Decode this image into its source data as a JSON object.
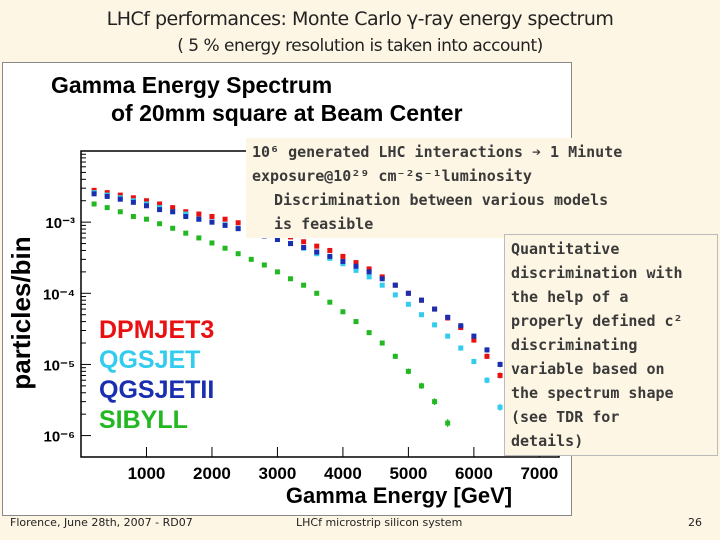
{
  "slide": {
    "title_line1": "LHCf performances: Monte Carlo γ-ray energy spectrum",
    "title_line2": "( 5 % energy resolution is taken into account)",
    "footer_left": "Florence, June 28th, 2007 - RD07",
    "footer_center": "LHCf microstrip silicon system",
    "page_number": "26"
  },
  "callouts": {
    "box1_line1": "10⁶ generated LHC interactions ➔ 1 Minute",
    "box1_line2": "exposure@10²⁹ cm⁻²s⁻¹luminosity",
    "box1_line3": "Discrimination between various models",
    "box1_line4": "is feasible",
    "box2_lines": [
      "Quantitative",
      "discrimination with",
      "the help of a",
      "properly defined c²",
      "discriminating",
      "variable based on",
      "the spectrum shape",
      "(see TDR for",
      "details)"
    ]
  },
  "chart_data": {
    "type": "scatter",
    "title": "Gamma Energy Spectrum of 20mm square at Beam Center",
    "title_lines": [
      "Gamma Energy Spectrum",
      "of 20mm square at Beam Center"
    ],
    "xlabel": "Gamma Energy [GeV]",
    "ylabel": "particles/bin",
    "xlim": [
      0,
      7300
    ],
    "ylim": [
      5e-07,
      0.01
    ],
    "y_scale": "log",
    "x_ticks": [
      1000,
      2000,
      3000,
      4000,
      5000,
      6000,
      7000
    ],
    "y_ticks": [
      1e-06,
      1e-05,
      0.0001,
      0.001
    ],
    "y_tick_labels": [
      "10⁻⁶",
      "10⁻⁵",
      "10⁻⁴",
      "10⁻³"
    ],
    "legend_position": "bottom-left",
    "series": [
      {
        "name": "DPMJET3",
        "color": "#e81010",
        "x": [
          200,
          400,
          600,
          800,
          1000,
          1200,
          1400,
          1600,
          1800,
          2000,
          2200,
          2400,
          2600,
          2800,
          3000,
          3200,
          3400,
          3600,
          3800,
          4000,
          4200,
          4400,
          4600,
          4800,
          5000,
          5200,
          5400,
          5600,
          5800,
          6000,
          6200,
          6400,
          6600
        ],
        "y": [
          0.0028,
          0.0026,
          0.0024,
          0.0022,
          0.002,
          0.0018,
          0.0016,
          0.0014,
          0.0013,
          0.0012,
          0.0011,
          0.00098,
          0.00088,
          0.00079,
          0.0007,
          0.00062,
          0.00053,
          0.00046,
          0.0004,
          0.00033,
          0.00027,
          0.00022,
          0.00017,
          0.00013,
          0.0001,
          8e-05,
          6e-05,
          4.5e-05,
          3.3e-05,
          2.2e-05,
          1.3e-05,
          7e-06,
          3e-06
        ]
      },
      {
        "name": "QGSJET",
        "color": "#33ccee",
        "x": [
          200,
          400,
          600,
          800,
          1000,
          1200,
          1400,
          1600,
          1800,
          2000,
          2200,
          2400,
          2600,
          2800,
          3000,
          3200,
          3400,
          3600,
          3800,
          4000,
          4200,
          4400,
          4600,
          4800,
          5000,
          5200,
          5400,
          5600,
          5800,
          6000,
          6200,
          6400
        ],
        "y": [
          0.0026,
          0.0024,
          0.0022,
          0.002,
          0.0018,
          0.0016,
          0.0014,
          0.0013,
          0.0011,
          0.001,
          0.00092,
          0.00082,
          0.00074,
          0.00065,
          0.00057,
          0.0005,
          0.00043,
          0.00036,
          0.00031,
          0.00026,
          0.00021,
          0.00017,
          0.00013,
          9.5e-05,
          7e-05,
          5e-05,
          3.6e-05,
          2.5e-05,
          1.7e-05,
          1.1e-05,
          6e-06,
          2.5e-06
        ]
      },
      {
        "name": "QGSJETII",
        "color": "#1a2fb0",
        "x": [
          200,
          400,
          600,
          800,
          1000,
          1200,
          1400,
          1600,
          1800,
          2000,
          2200,
          2400,
          2600,
          2800,
          3000,
          3200,
          3400,
          3600,
          3800,
          4000,
          4200,
          4400,
          4600,
          4800,
          5000,
          5200,
          5400,
          5600,
          5800,
          6000,
          6200,
          6400,
          6600,
          6800
        ],
        "y": [
          0.0025,
          0.0023,
          0.0021,
          0.0019,
          0.0017,
          0.0015,
          0.0014,
          0.0012,
          0.0011,
          0.001,
          0.0009,
          0.00081,
          0.00072,
          0.00064,
          0.00057,
          0.0005,
          0.00044,
          0.00038,
          0.00033,
          0.00028,
          0.00024,
          0.0002,
          0.00016,
          0.00013,
          0.0001,
          8e-05,
          6e-05,
          4.6e-05,
          3.5e-05,
          2.5e-05,
          1.6e-05,
          1e-05,
          5e-06,
          2e-06
        ]
      },
      {
        "name": "SIBYLL",
        "color": "#22b822",
        "x": [
          200,
          400,
          600,
          800,
          1000,
          1200,
          1400,
          1600,
          1800,
          2000,
          2200,
          2400,
          2600,
          2800,
          3000,
          3200,
          3400,
          3600,
          3800,
          4000,
          4200,
          4400,
          4600,
          4800,
          5000,
          5200,
          5400,
          5600
        ],
        "y": [
          0.0018,
          0.0016,
          0.0014,
          0.0012,
          0.0011,
          0.00095,
          0.00082,
          0.0007,
          0.0006,
          0.00051,
          0.00043,
          0.00036,
          0.0003,
          0.00025,
          0.0002,
          0.00016,
          0.00013,
          0.0001,
          7.5e-05,
          5.5e-05,
          4e-05,
          2.8e-05,
          2e-05,
          1.3e-05,
          8e-06,
          5e-06,
          3e-06,
          1.5e-06
        ]
      }
    ]
  }
}
